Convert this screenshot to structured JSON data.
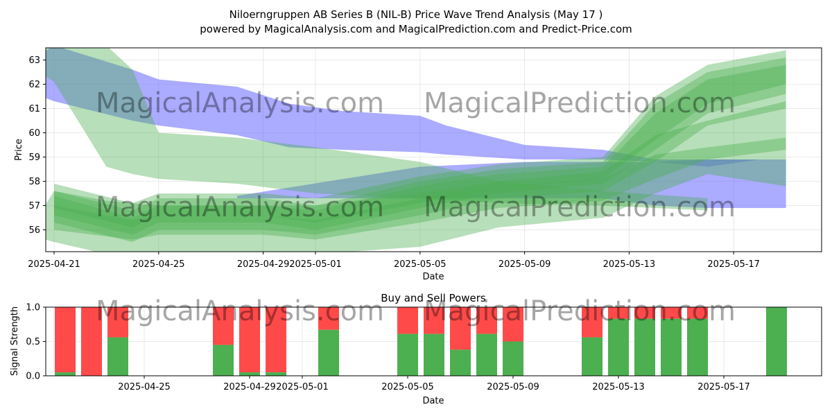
{
  "title_line1": "Niloerngruppen AB Series B (NIL-B) Price Wave Trend Analysis (May 17 )",
  "title_line2": "powered by MagicalAnalysis.com and MagicalPrediction.com and Predict-Price.com",
  "watermarks": [
    "MagicalAnalysis.com",
    "MagicalPrediction.com"
  ],
  "colors": {
    "blue_band": "#6666ff",
    "green_band": "#4caf50",
    "buy": "#4caf50",
    "sell": "#ff4a4a"
  },
  "chart_data": [
    {
      "type": "area",
      "title": "",
      "xlabel": "Date",
      "ylabel": "Price",
      "x_range": [
        "2025-04-20",
        "2025-05-20"
      ],
      "ylim": [
        55.1,
        63.5
      ],
      "y_ticks": [
        56,
        57,
        58,
        59,
        60,
        61,
        62,
        63
      ],
      "x_ticks": [
        "2025-04-21",
        "2025-04-25",
        "2025-04-29",
        "2025-05-01",
        "2025-05-05",
        "2025-05-09",
        "2025-05-13",
        "2025-05-17"
      ],
      "grid": true,
      "series": [
        {
          "kind": "blue",
          "points": [
            {
              "x": "2025-04-20",
              "low": 61.7,
              "high": 62.9
            },
            {
              "x": "2025-04-21",
              "low": 61.3,
              "high": 63.6
            },
            {
              "x": "2025-04-24",
              "low": 60.5,
              "high": 62.6
            },
            {
              "x": "2025-04-25",
              "low": 60.3,
              "high": 62.2
            },
            {
              "x": "2025-04-28",
              "low": 59.9,
              "high": 61.9
            },
            {
              "x": "2025-04-30",
              "low": 59.4,
              "high": 61.2
            },
            {
              "x": "2025-05-02",
              "low": 59.3,
              "high": 60.9
            },
            {
              "x": "2025-05-05",
              "low": 59.2,
              "high": 60.7
            },
            {
              "x": "2025-05-06",
              "low": 59.1,
              "high": 60.3
            },
            {
              "x": "2025-05-09",
              "low": 58.9,
              "high": 59.5
            },
            {
              "x": "2025-05-12",
              "low": 58.9,
              "high": 59.3
            },
            {
              "x": "2025-05-14",
              "low": 58.8,
              "high": 58.9
            },
            {
              "x": "2025-05-16",
              "low": 58.6,
              "high": 58.9
            },
            {
              "x": "2025-05-18",
              "low": 58.9,
              "high": 58.9
            },
            {
              "x": "2025-05-19",
              "low": 58.9,
              "high": 58.9
            }
          ]
        },
        {
          "kind": "blue",
          "points": [
            {
              "x": "2025-04-28",
              "low": 57.3,
              "high": 57.4
            },
            {
              "x": "2025-05-05",
              "low": 57.3,
              "high": 58.6
            },
            {
              "x": "2025-05-09",
              "low": 57.3,
              "high": 58.8
            },
            {
              "x": "2025-05-12",
              "low": 57.3,
              "high": 58.8
            },
            {
              "x": "2025-05-14",
              "low": 57.0,
              "high": 58.8
            },
            {
              "x": "2025-05-16",
              "low": 56.9,
              "high": 58.9
            },
            {
              "x": "2025-05-19",
              "low": 56.9,
              "high": 58.9
            }
          ]
        },
        {
          "kind": "green",
          "points": [
            {
              "x": "2025-04-20",
              "low": 62.8,
              "high": 63.1
            },
            {
              "x": "2025-04-21",
              "low": 62.1,
              "high": 63.7
            },
            {
              "x": "2025-04-23",
              "low": 58.6,
              "high": 63.6
            },
            {
              "x": "2025-04-24",
              "low": 58.3,
              "high": 62.6
            },
            {
              "x": "2025-04-25",
              "low": 58.1,
              "high": 60.0
            },
            {
              "x": "2025-04-28",
              "low": 57.9,
              "high": 59.8
            },
            {
              "x": "2025-05-01",
              "low": 57.5,
              "high": 59.4
            },
            {
              "x": "2025-05-05",
              "low": 57.3,
              "high": 58.8
            },
            {
              "x": "2025-05-08",
              "low": 57.1,
              "high": 58.0
            },
            {
              "x": "2025-05-12",
              "low": 57.0,
              "high": 57.6
            },
            {
              "x": "2025-05-16",
              "low": 56.8,
              "high": 57.3
            }
          ]
        },
        {
          "kind": "green",
          "points": [
            {
              "x": "2025-04-20",
              "low": 55.8,
              "high": 55.9
            },
            {
              "x": "2025-04-21",
              "low": 55.5,
              "high": 57.6
            },
            {
              "x": "2025-04-23",
              "low": 55.0,
              "high": 57.2
            },
            {
              "x": "2025-04-25",
              "low": 55.0,
              "high": 57.0
            },
            {
              "x": "2025-04-29",
              "low": 55.0,
              "high": 57.0
            },
            {
              "x": "2025-05-01",
              "low": 55.0,
              "high": 57.0
            },
            {
              "x": "2025-05-05",
              "low": 55.3,
              "high": 57.5
            },
            {
              "x": "2025-05-08",
              "low": 56.1,
              "high": 58.0
            },
            {
              "x": "2025-05-12",
              "low": 56.5,
              "high": 58.4
            },
            {
              "x": "2025-05-14",
              "low": 57.5,
              "high": 59.9
            },
            {
              "x": "2025-05-16",
              "low": 58.3,
              "high": 60.5
            },
            {
              "x": "2025-05-19",
              "low": 57.8,
              "high": 61.3
            }
          ]
        },
        {
          "kind": "green",
          "points": [
            {
              "x": "2025-04-21",
              "low": 56.3,
              "high": 57.4
            },
            {
              "x": "2025-04-24",
              "low": 55.5,
              "high": 56.5
            },
            {
              "x": "2025-04-25",
              "low": 56.0,
              "high": 57.0
            },
            {
              "x": "2025-04-29",
              "low": 56.0,
              "high": 57.0
            },
            {
              "x": "2025-05-01",
              "low": 55.8,
              "high": 56.8
            },
            {
              "x": "2025-05-05",
              "low": 56.6,
              "high": 57.8
            },
            {
              "x": "2025-05-08",
              "low": 57.3,
              "high": 58.3
            },
            {
              "x": "2025-05-12",
              "low": 57.6,
              "high": 58.6
            },
            {
              "x": "2025-05-14",
              "low": 58.8,
              "high": 60.8
            },
            {
              "x": "2025-05-16",
              "low": 60.3,
              "high": 62.2
            },
            {
              "x": "2025-05-19",
              "low": 61.0,
              "high": 62.8
            }
          ]
        },
        {
          "kind": "green",
          "points": [
            {
              "x": "2025-04-21",
              "low": 56.6,
              "high": 57.6
            },
            {
              "x": "2025-04-24",
              "low": 55.8,
              "high": 56.8
            },
            {
              "x": "2025-04-25",
              "low": 56.3,
              "high": 57.3
            },
            {
              "x": "2025-04-29",
              "low": 56.3,
              "high": 57.3
            },
            {
              "x": "2025-05-01",
              "low": 56.0,
              "high": 57.0
            },
            {
              "x": "2025-05-05",
              "low": 56.9,
              "high": 58.0
            },
            {
              "x": "2025-05-08",
              "low": 57.5,
              "high": 58.5
            },
            {
              "x": "2025-05-12",
              "low": 57.9,
              "high": 58.8
            },
            {
              "x": "2025-05-14",
              "low": 59.3,
              "high": 61.2
            },
            {
              "x": "2025-05-16",
              "low": 60.8,
              "high": 62.5
            },
            {
              "x": "2025-05-19",
              "low": 61.6,
              "high": 63.1
            }
          ]
        },
        {
          "kind": "green",
          "points": [
            {
              "x": "2025-04-21",
              "low": 56.9,
              "high": 57.9
            },
            {
              "x": "2025-04-24",
              "low": 56.1,
              "high": 57.1
            },
            {
              "x": "2025-04-25",
              "low": 56.6,
              "high": 57.5
            },
            {
              "x": "2025-04-29",
              "low": 56.6,
              "high": 57.5
            },
            {
              "x": "2025-05-01",
              "low": 56.3,
              "high": 57.3
            },
            {
              "x": "2025-05-05",
              "low": 57.1,
              "high": 58.2
            },
            {
              "x": "2025-05-08",
              "low": 57.7,
              "high": 58.7
            },
            {
              "x": "2025-05-12",
              "low": 58.1,
              "high": 59.0
            },
            {
              "x": "2025-05-14",
              "low": 59.7,
              "high": 61.5
            },
            {
              "x": "2025-05-16",
              "low": 61.2,
              "high": 62.8
            },
            {
              "x": "2025-05-19",
              "low": 62.0,
              "high": 63.4
            }
          ]
        },
        {
          "kind": "green",
          "points": [
            {
              "x": "2025-04-21",
              "low": 56.0,
              "high": 57.0
            },
            {
              "x": "2025-04-24",
              "low": 55.6,
              "high": 56.4
            },
            {
              "x": "2025-04-25",
              "low": 55.8,
              "high": 56.6
            },
            {
              "x": "2025-04-29",
              "low": 55.8,
              "high": 56.6
            },
            {
              "x": "2025-05-01",
              "low": 55.6,
              "high": 56.4
            },
            {
              "x": "2025-05-05",
              "low": 56.3,
              "high": 57.3
            },
            {
              "x": "2025-05-08",
              "low": 56.9,
              "high": 57.8
            },
            {
              "x": "2025-05-12",
              "low": 57.2,
              "high": 58.1
            },
            {
              "x": "2025-05-14",
              "low": 58.1,
              "high": 59.1
            },
            {
              "x": "2025-05-16",
              "low": 58.9,
              "high": 59.4
            },
            {
              "x": "2025-05-19",
              "low": 59.3,
              "high": 59.8
            }
          ]
        }
      ]
    },
    {
      "type": "bar",
      "title": "Buy and Sell Powers",
      "xlabel": "Date",
      "ylabel": "Signal Strength",
      "ylim": [
        0,
        1
      ],
      "y_ticks": [
        "0.0",
        "0.5",
        "1.0"
      ],
      "x_ticks": [
        "2025-04-25",
        "2025-04-29",
        "2025-05-01",
        "2025-05-05",
        "2025-05-09",
        "2025-05-13",
        "2025-05-17"
      ],
      "grid": true,
      "series": [
        {
          "name": "buy"
        },
        {
          "name": "sell"
        }
      ],
      "bars": [
        {
          "x": "2025-04-22",
          "buy": 0.05
        },
        {
          "x": "2025-04-23",
          "buy": 0.0
        },
        {
          "x": "2025-04-24",
          "buy": 0.56
        },
        {
          "x": "2025-04-28",
          "buy": 0.45
        },
        {
          "x": "2025-04-29",
          "buy": 0.05
        },
        {
          "x": "2025-04-30",
          "buy": 0.05
        },
        {
          "x": "2025-05-02",
          "buy": 0.67
        },
        {
          "x": "2025-05-05",
          "buy": 0.61
        },
        {
          "x": "2025-05-06",
          "buy": 0.61
        },
        {
          "x": "2025-05-07",
          "buy": 0.38
        },
        {
          "x": "2025-05-08",
          "buy": 0.61
        },
        {
          "x": "2025-05-09",
          "buy": 0.5
        },
        {
          "x": "2025-05-12",
          "buy": 0.56
        },
        {
          "x": "2025-05-13",
          "buy": 0.83
        },
        {
          "x": "2025-05-14",
          "buy": 0.83
        },
        {
          "x": "2025-05-15",
          "buy": 0.83
        },
        {
          "x": "2025-05-16",
          "buy": 0.83
        },
        {
          "x": "2025-05-19",
          "buy": 1.0
        }
      ]
    }
  ]
}
